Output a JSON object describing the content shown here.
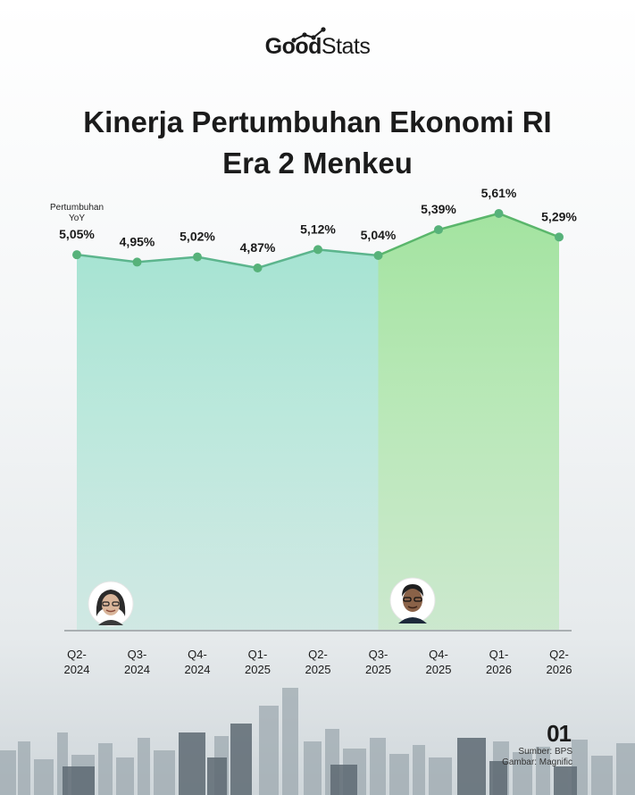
{
  "brand": {
    "part1": "Good",
    "part2": "Stats"
  },
  "title_line1": "Kinerja Pertumbuhan Ekonomi RI",
  "title_line2": "Era 2 Menkeu",
  "page_number": "01",
  "source_line1": "Sumber: BPS",
  "source_line2": "Gambar: Magnific",
  "colors": {
    "era1_fill": "#a6e3d2",
    "era1_line": "#5cb58d",
    "era2_fill": "#a3e3a0",
    "era2_line": "#5ab66b",
    "point": "#57b27a"
  },
  "chart_data": {
    "type": "area",
    "ylabel": "Pertumbuhan YoY",
    "categories": [
      "Q2-2024",
      "Q3-2024",
      "Q4-2024",
      "Q1-2025",
      "Q2-2025",
      "Q3-2025",
      "Q4-2025",
      "Q1-2026",
      "Q2-2026"
    ],
    "values": [
      5.05,
      4.95,
      5.02,
      4.87,
      5.12,
      5.04,
      5.39,
      5.61,
      5.29
    ],
    "value_labels": [
      "5,05%",
      "4,95%",
      "5,02%",
      "4,87%",
      "5,12%",
      "5,04%",
      "5,39%",
      "5,61%",
      "5,29%"
    ],
    "segments": [
      {
        "from": "Q2-2024",
        "to": "Q3-2025",
        "color": "#a6e3d2"
      },
      {
        "from": "Q3-2025",
        "to": "Q2-2026",
        "color": "#a3e3a0"
      }
    ],
    "grid": false
  }
}
